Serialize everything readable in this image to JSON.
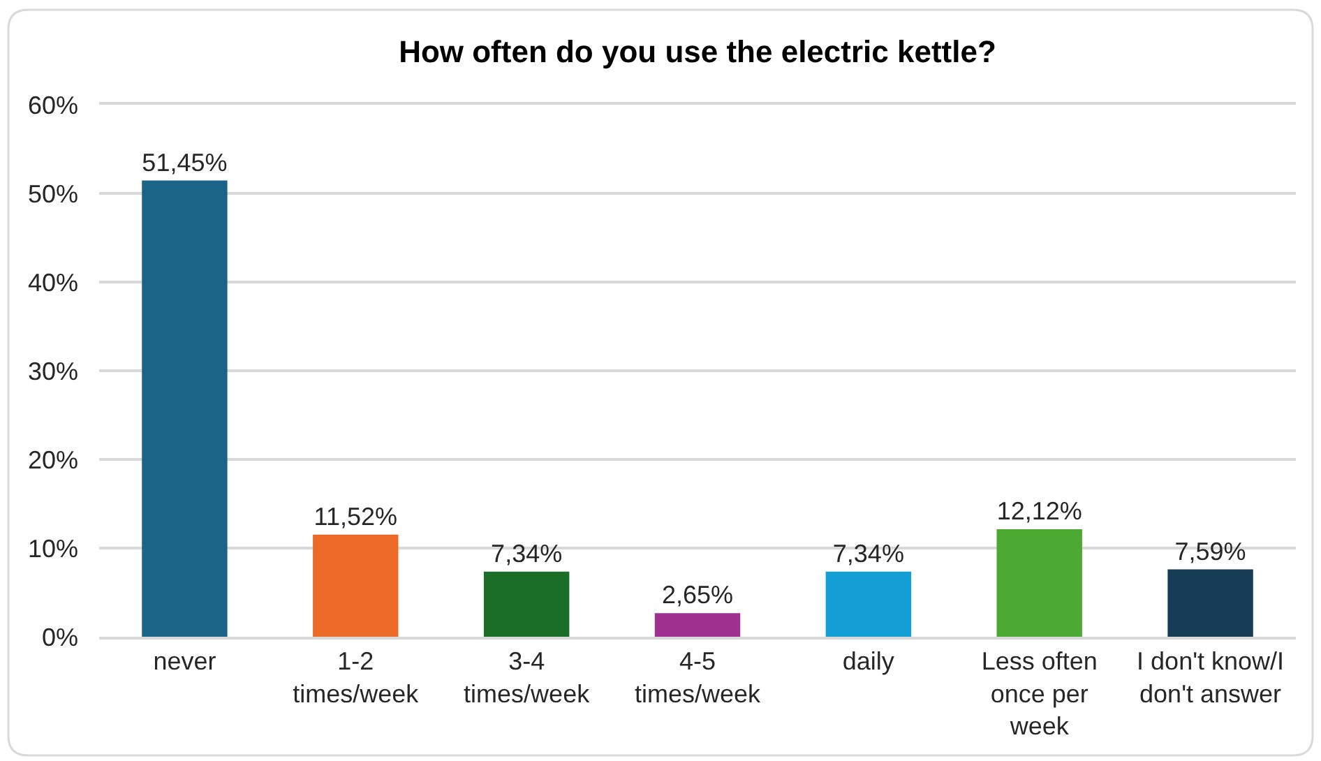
{
  "chart_data": {
    "type": "bar",
    "title": "How often do you use the electric kettle?",
    "categories": [
      "never",
      "1-2 times/week",
      "3-4 times/week",
      "4-5 times/week",
      "daily",
      "Less often once per week",
      "I don't know/I don't answer"
    ],
    "values": [
      51.45,
      11.52,
      7.34,
      2.65,
      7.34,
      12.12,
      7.59
    ],
    "value_labels": [
      "51,45%",
      "11,52%",
      "7,34%",
      "2,65%",
      "7,34%",
      "12,12%",
      "7,59%"
    ],
    "colors": [
      "#1b6488",
      "#ec6a27",
      "#1a6e27",
      "#a0308f",
      "#139fd6",
      "#4caa32",
      "#173d56"
    ],
    "ylim": [
      0,
      60
    ],
    "yticks": [
      {
        "value": 0,
        "label": "0%"
      },
      {
        "value": 10,
        "label": "10%"
      },
      {
        "value": 20,
        "label": "20%"
      },
      {
        "value": 30,
        "label": "30%"
      },
      {
        "value": 40,
        "label": "40%"
      },
      {
        "value": 50,
        "label": "50%"
      },
      {
        "value": 60,
        "label": "60%"
      }
    ],
    "grid": "y"
  }
}
